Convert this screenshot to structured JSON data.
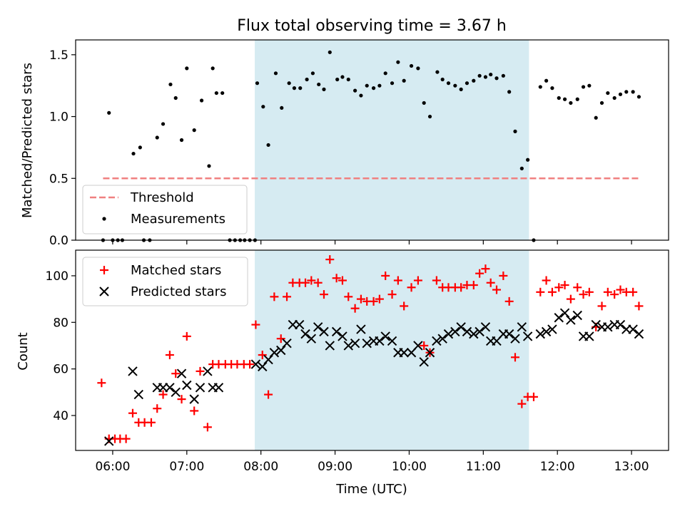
{
  "title": "Flux total observing time = 3.67 h",
  "colors": {
    "shade": "#add8e6",
    "threshold": "#f08080",
    "measurements": "#000000",
    "matched": "#ff0000",
    "predicted": "#000000"
  },
  "chart_data": [
    {
      "type": "scatter",
      "ylabel": "Matched/Predicted stars",
      "xlim": [
        5.5,
        13.5
      ],
      "ylim": [
        0,
        1.62
      ],
      "yticks": [
        "0.0",
        "0.5",
        "1.0",
        "1.5"
      ],
      "xticks": [
        "06:00",
        "07:00",
        "08:00",
        "09:00",
        "10:00",
        "11:00",
        "12:00",
        "13:00"
      ],
      "shaded_interval": [
        "07:55",
        "11:37"
      ],
      "legend": {
        "position": "lower-left",
        "entries": [
          "Threshold",
          "Measurements"
        ]
      },
      "series": [
        {
          "name": "Threshold",
          "style": "dashed-line",
          "x": [
            5.87,
            13.1
          ],
          "y": [
            0.5,
            0.5
          ]
        },
        {
          "name": "Measurements",
          "style": "dots",
          "points": [
            [
              5.87,
              0
            ],
            [
              5.95,
              1.03
            ],
            [
              6.0,
              0
            ],
            [
              6.07,
              0
            ],
            [
              6.13,
              0
            ],
            [
              6.28,
              0.7
            ],
            [
              6.37,
              0.75
            ],
            [
              6.42,
              0
            ],
            [
              6.5,
              0
            ],
            [
              6.6,
              0.83
            ],
            [
              6.68,
              0.94
            ],
            [
              6.78,
              1.26
            ],
            [
              6.85,
              1.15
            ],
            [
              6.93,
              0.81
            ],
            [
              7.0,
              1.39
            ],
            [
              7.1,
              0.89
            ],
            [
              7.2,
              1.13
            ],
            [
              7.3,
              0.6
            ],
            [
              7.35,
              1.39
            ],
            [
              7.4,
              1.19
            ],
            [
              7.48,
              1.19
            ],
            [
              7.58,
              0
            ],
            [
              7.65,
              0
            ],
            [
              7.72,
              0
            ],
            [
              7.78,
              0
            ],
            [
              7.85,
              0
            ],
            [
              7.92,
              0
            ],
            [
              7.95,
              1.27
            ],
            [
              8.03,
              1.08
            ],
            [
              8.1,
              0.77
            ],
            [
              8.2,
              1.35
            ],
            [
              8.28,
              1.07
            ],
            [
              8.38,
              1.27
            ],
            [
              8.45,
              1.23
            ],
            [
              8.53,
              1.23
            ],
            [
              8.62,
              1.3
            ],
            [
              8.7,
              1.35
            ],
            [
              8.78,
              1.26
            ],
            [
              8.85,
              1.22
            ],
            [
              8.93,
              1.52
            ],
            [
              9.03,
              1.3
            ],
            [
              9.1,
              1.32
            ],
            [
              9.18,
              1.3
            ],
            [
              9.27,
              1.21
            ],
            [
              9.35,
              1.17
            ],
            [
              9.43,
              1.25
            ],
            [
              9.52,
              1.23
            ],
            [
              9.6,
              1.25
            ],
            [
              9.68,
              1.35
            ],
            [
              9.77,
              1.27
            ],
            [
              9.85,
              1.44
            ],
            [
              9.93,
              1.29
            ],
            [
              10.03,
              1.41
            ],
            [
              10.12,
              1.39
            ],
            [
              10.2,
              1.11
            ],
            [
              10.28,
              1.0
            ],
            [
              10.38,
              1.36
            ],
            [
              10.45,
              1.3
            ],
            [
              10.53,
              1.27
            ],
            [
              10.62,
              1.25
            ],
            [
              10.7,
              1.22
            ],
            [
              10.78,
              1.27
            ],
            [
              10.87,
              1.29
            ],
            [
              10.95,
              1.33
            ],
            [
              11.03,
              1.32
            ],
            [
              11.1,
              1.34
            ],
            [
              11.18,
              1.31
            ],
            [
              11.27,
              1.33
            ],
            [
              11.35,
              1.2
            ],
            [
              11.43,
              0.88
            ],
            [
              11.52,
              0.58
            ],
            [
              11.6,
              0.65
            ],
            [
              11.68,
              0
            ],
            [
              11.77,
              1.24
            ],
            [
              11.85,
              1.29
            ],
            [
              11.93,
              1.23
            ],
            [
              12.02,
              1.15
            ],
            [
              12.1,
              1.14
            ],
            [
              12.18,
              1.11
            ],
            [
              12.27,
              1.14
            ],
            [
              12.35,
              1.24
            ],
            [
              12.43,
              1.25
            ],
            [
              12.52,
              0.99
            ],
            [
              12.6,
              1.11
            ],
            [
              12.68,
              1.19
            ],
            [
              12.77,
              1.15
            ],
            [
              12.85,
              1.18
            ],
            [
              12.93,
              1.2
            ],
            [
              13.02,
              1.2
            ],
            [
              13.1,
              1.16
            ]
          ]
        }
      ]
    },
    {
      "type": "scatter",
      "xlabel": "Time (UTC)",
      "ylabel": "Count",
      "xlim": [
        5.5,
        13.5
      ],
      "ylim": [
        25,
        111
      ],
      "yticks": [
        "40",
        "60",
        "80",
        "100"
      ],
      "xticks": [
        "06:00",
        "07:00",
        "08:00",
        "09:00",
        "10:00",
        "11:00",
        "12:00",
        "13:00"
      ],
      "shaded_interval": [
        "07:55",
        "11:37"
      ],
      "legend": {
        "position": "upper-left",
        "entries": [
          "Matched stars",
          "Predicted stars"
        ]
      },
      "series": [
        {
          "name": "Matched stars",
          "marker": "plus",
          "points": [
            [
              5.85,
              54
            ],
            [
              5.95,
              30
            ],
            [
              6.03,
              30
            ],
            [
              6.1,
              30
            ],
            [
              6.18,
              30
            ],
            [
              6.27,
              41
            ],
            [
              6.35,
              37
            ],
            [
              6.43,
              37
            ],
            [
              6.52,
              37
            ],
            [
              6.6,
              43
            ],
            [
              6.68,
              49
            ],
            [
              6.77,
              66
            ],
            [
              6.85,
              58
            ],
            [
              6.93,
              47
            ],
            [
              7.0,
              74
            ],
            [
              7.1,
              42
            ],
            [
              7.18,
              59
            ],
            [
              7.28,
              35
            ],
            [
              7.35,
              62
            ],
            [
              7.43,
              62
            ],
            [
              7.52,
              62
            ],
            [
              7.6,
              62
            ],
            [
              7.68,
              62
            ],
            [
              7.77,
              62
            ],
            [
              7.85,
              62
            ],
            [
              7.93,
              79
            ],
            [
              8.02,
              66
            ],
            [
              8.1,
              49
            ],
            [
              8.18,
              91
            ],
            [
              8.27,
              73
            ],
            [
              8.35,
              91
            ],
            [
              8.43,
              97
            ],
            [
              8.52,
              97
            ],
            [
              8.6,
              97
            ],
            [
              8.68,
              98
            ],
            [
              8.77,
              97
            ],
            [
              8.85,
              92
            ],
            [
              8.93,
              107
            ],
            [
              9.02,
              99
            ],
            [
              9.1,
              98
            ],
            [
              9.18,
              91
            ],
            [
              9.27,
              86
            ],
            [
              9.35,
              90
            ],
            [
              9.43,
              89
            ],
            [
              9.52,
              89
            ],
            [
              9.6,
              90
            ],
            [
              9.68,
              100
            ],
            [
              9.77,
              92
            ],
            [
              9.85,
              98
            ],
            [
              9.93,
              87
            ],
            [
              10.03,
              95
            ],
            [
              10.12,
              98
            ],
            [
              10.2,
              70
            ],
            [
              10.28,
              67
            ],
            [
              10.37,
              98
            ],
            [
              10.45,
              95
            ],
            [
              10.53,
              95
            ],
            [
              10.62,
              95
            ],
            [
              10.7,
              95
            ],
            [
              10.78,
              96
            ],
            [
              10.87,
              96
            ],
            [
              10.95,
              101
            ],
            [
              11.03,
              103
            ],
            [
              11.1,
              97
            ],
            [
              11.18,
              94
            ],
            [
              11.27,
              100
            ],
            [
              11.35,
              89
            ],
            [
              11.43,
              65
            ],
            [
              11.52,
              45
            ],
            [
              11.6,
              48
            ],
            [
              11.68,
              48
            ],
            [
              11.77,
              93
            ],
            [
              11.85,
              98
            ],
            [
              11.93,
              93
            ],
            [
              12.02,
              95
            ],
            [
              12.1,
              96
            ],
            [
              12.18,
              90
            ],
            [
              12.27,
              95
            ],
            [
              12.35,
              92
            ],
            [
              12.43,
              93
            ],
            [
              12.52,
              78
            ],
            [
              12.6,
              87
            ],
            [
              12.68,
              93
            ],
            [
              12.77,
              92
            ],
            [
              12.85,
              94
            ],
            [
              12.93,
              93
            ],
            [
              13.02,
              93
            ],
            [
              13.1,
              87
            ]
          ]
        },
        {
          "name": "Predicted stars",
          "marker": "x",
          "points": [
            [
              5.95,
              29
            ],
            [
              6.27,
              59
            ],
            [
              6.35,
              49
            ],
            [
              6.6,
              52
            ],
            [
              6.68,
              52
            ],
            [
              6.77,
              52
            ],
            [
              6.85,
              50
            ],
            [
              6.93,
              58
            ],
            [
              7.0,
              53
            ],
            [
              7.1,
              47
            ],
            [
              7.18,
              52
            ],
            [
              7.28,
              59
            ],
            [
              7.35,
              52
            ],
            [
              7.43,
              52
            ],
            [
              7.93,
              62
            ],
            [
              8.02,
              61
            ],
            [
              8.1,
              64
            ],
            [
              8.18,
              67
            ],
            [
              8.27,
              68
            ],
            [
              8.35,
              71
            ],
            [
              8.43,
              79
            ],
            [
              8.52,
              79
            ],
            [
              8.6,
              75
            ],
            [
              8.68,
              73
            ],
            [
              8.77,
              78
            ],
            [
              8.85,
              76
            ],
            [
              8.93,
              70
            ],
            [
              9.02,
              76
            ],
            [
              9.1,
              74
            ],
            [
              9.18,
              70
            ],
            [
              9.27,
              71
            ],
            [
              9.35,
              77
            ],
            [
              9.43,
              71
            ],
            [
              9.52,
              72
            ],
            [
              9.6,
              72
            ],
            [
              9.68,
              74
            ],
            [
              9.77,
              72
            ],
            [
              9.85,
              67
            ],
            [
              9.93,
              67
            ],
            [
              10.03,
              67
            ],
            [
              10.12,
              70
            ],
            [
              10.2,
              63
            ],
            [
              10.28,
              67
            ],
            [
              10.37,
              72
            ],
            [
              10.45,
              73
            ],
            [
              10.53,
              75
            ],
            [
              10.62,
              76
            ],
            [
              10.7,
              78
            ],
            [
              10.78,
              76
            ],
            [
              10.87,
              75
            ],
            [
              10.95,
              76
            ],
            [
              11.03,
              78
            ],
            [
              11.1,
              72
            ],
            [
              11.18,
              72
            ],
            [
              11.27,
              75
            ],
            [
              11.35,
              75
            ],
            [
              11.43,
              73
            ],
            [
              11.52,
              78
            ],
            [
              11.6,
              74
            ],
            [
              11.77,
              75
            ],
            [
              11.85,
              76
            ],
            [
              11.93,
              77
            ],
            [
              12.02,
              82
            ],
            [
              12.1,
              84
            ],
            [
              12.18,
              81
            ],
            [
              12.27,
              83
            ],
            [
              12.35,
              74
            ],
            [
              12.43,
              74
            ],
            [
              12.52,
              79
            ],
            [
              12.6,
              78
            ],
            [
              12.68,
              78
            ],
            [
              12.77,
              79
            ],
            [
              12.85,
              79
            ],
            [
              12.93,
              77
            ],
            [
              13.02,
              77
            ],
            [
              13.1,
              75
            ]
          ]
        }
      ]
    }
  ]
}
